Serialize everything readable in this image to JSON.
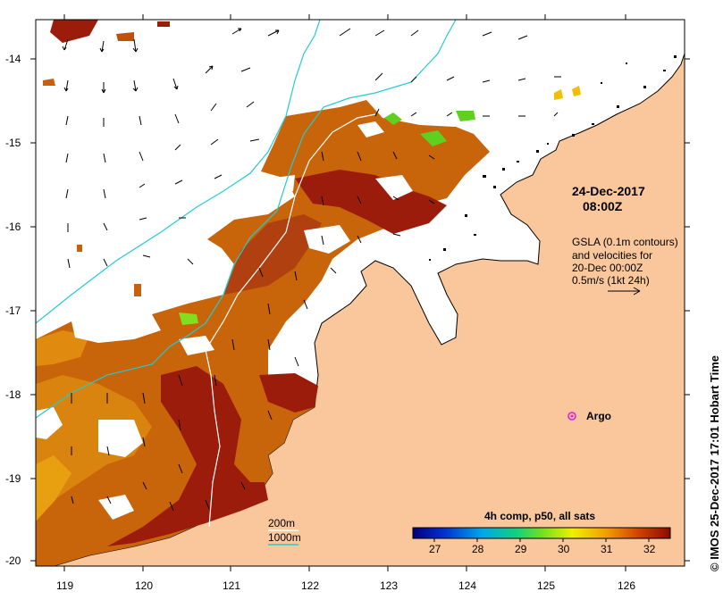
{
  "map": {
    "datetime": {
      "date": "24-Dec-2017",
      "time": "08:00Z"
    },
    "gsla_note": [
      "GSLA (0.1m contours)",
      "and velocities for",
      "20-Dec 00:00Z",
      "0.5m/s (1kt 24h)"
    ],
    "argo_label": "Argo",
    "depth_legend": [
      "200m",
      "1000m"
    ],
    "colorbar": {
      "title": "4h comp, p50, all sats",
      "ticks": [
        "27",
        "28",
        "29",
        "30",
        "31",
        "32"
      ],
      "value_range": [
        26.5,
        32.5
      ]
    },
    "lat_ticks": [
      "-14",
      "-15",
      "-16",
      "-17",
      "-18",
      "-19",
      "-20"
    ],
    "lon_ticks": [
      "119",
      "120",
      "121",
      "122",
      "123",
      "124",
      "125",
      "126"
    ],
    "credit": "© IMOS 25-Dec-2017 17:01 Hobart Time",
    "colors": {
      "land": "#f9c79b",
      "sst_warm": "#9c1c0c",
      "sst_mid": "#c8640a",
      "depth_200m": "#ffffff",
      "depth_1000m": "#22cbd6",
      "argo": "#e020e0"
    }
  }
}
